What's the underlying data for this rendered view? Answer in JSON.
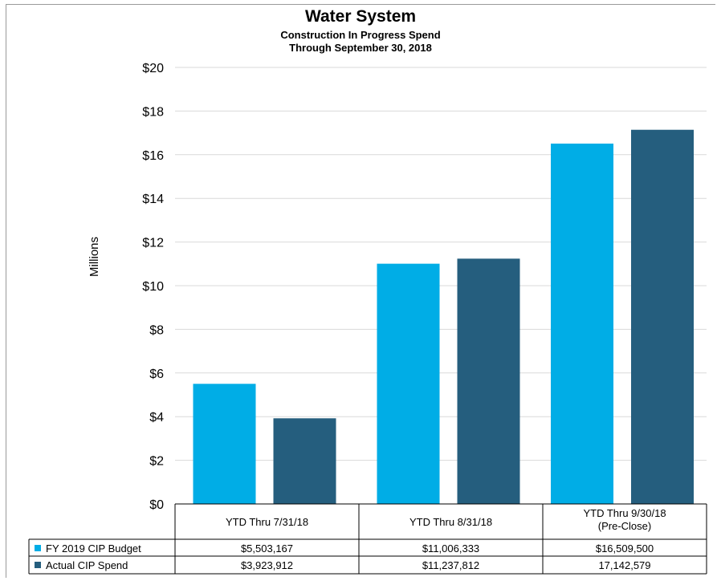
{
  "chart_data": {
    "type": "bar",
    "title": "Water System",
    "subtitle": [
      "Construction In Progress Spend",
      "Through September 30, 2018"
    ],
    "ylabel": "Millions",
    "xlabel": "",
    "ylim": [
      0,
      20
    ],
    "ytick_step": 2,
    "ytick_labels": [
      "$0",
      "$2",
      "$4",
      "$6",
      "$8",
      "$10",
      "$12",
      "$14",
      "$16",
      "$18",
      "$20"
    ],
    "grid": true,
    "legend": "data-table",
    "categories": [
      [
        "YTD Thru 7/31/18"
      ],
      [
        "YTD Thru 8/31/18"
      ],
      [
        "YTD Thru 9/30/18",
        "(Pre-Close)"
      ]
    ],
    "series": [
      {
        "name": "FY 2019 CIP Budget",
        "color": "#00ADE6",
        "values": [
          5.503167,
          11.006333,
          16.5095
        ],
        "table_values": [
          "$5,503,167",
          "$11,006,333",
          "$16,509,500"
        ]
      },
      {
        "name": "Actual CIP Spend",
        "color": "#255E7E",
        "values": [
          3.923912,
          11.237812,
          17.142579
        ],
        "table_values": [
          "$3,923,912",
          "$11,237,812",
          "17,142,579"
        ]
      }
    ]
  }
}
